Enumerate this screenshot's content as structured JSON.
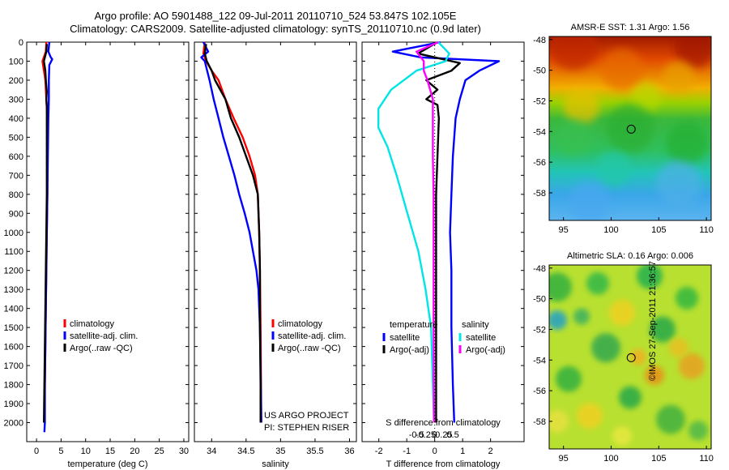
{
  "header": {
    "line1": "Argo profile: AO 5901488_122 09-Jul-2011 20110710_524 53.847S 102.105E",
    "line2": "Climatology: CARS2009. Satellite-adjusted climatology: synTS_20110710.nc (0.9d later)"
  },
  "copyright": "©IMOS 27-Sep-2011 21:36:57",
  "colors": {
    "climatology": "#ff0000",
    "satellite": "#0000ff",
    "argo": "#000000",
    "salinity_satellite": "#00e5e5",
    "salinity_argo": "#ff00ff"
  },
  "chart_data": [
    {
      "type": "line",
      "panel": "temperature",
      "xlabel": "temperature (deg C)",
      "ylabel": "",
      "xlim": [
        -2,
        31
      ],
      "ylim": [
        0,
        2100
      ],
      "y_reversed": true,
      "xticks": [
        0,
        5,
        10,
        15,
        20,
        25,
        30
      ],
      "yticks": [
        0,
        100,
        200,
        300,
        400,
        500,
        600,
        700,
        800,
        900,
        1000,
        1100,
        1200,
        1300,
        1400,
        1500,
        1600,
        1700,
        1800,
        1900,
        2000
      ],
      "legend": [
        "climatology",
        "satellite-adj. clim.",
        "Argo(..raw -QC)"
      ],
      "series": [
        {
          "name": "climatology",
          "color": "#ff0000",
          "points": [
            [
              2.0,
              0
            ],
            [
              1.9,
              50
            ],
            [
              1.2,
              100
            ],
            [
              1.5,
              150
            ],
            [
              1.8,
              200
            ],
            [
              2.0,
              300
            ],
            [
              2.2,
              400
            ],
            [
              2.2,
              600
            ],
            [
              2.2,
              800
            ],
            [
              2.1,
              1000
            ],
            [
              2.0,
              1200
            ],
            [
              1.9,
              1400
            ],
            [
              1.8,
              1600
            ],
            [
              1.7,
              1800
            ],
            [
              1.6,
              2000
            ]
          ]
        },
        {
          "name": "satellite-adj. clim.",
          "color": "#0000ff",
          "points": [
            [
              2.6,
              0
            ],
            [
              2.4,
              50
            ],
            [
              2.9,
              80
            ],
            [
              3.2,
              90
            ],
            [
              2.6,
              120
            ],
            [
              2.5,
              200
            ],
            [
              2.5,
              300
            ],
            [
              2.4,
              400
            ],
            [
              2.3,
              600
            ],
            [
              2.2,
              800
            ],
            [
              2.1,
              1000
            ],
            [
              2.0,
              1200
            ],
            [
              1.9,
              1400
            ],
            [
              1.8,
              1600
            ],
            [
              1.7,
              1800
            ],
            [
              1.7,
              2000
            ],
            [
              1.6,
              2050
            ]
          ]
        },
        {
          "name": "Argo(..raw -QC)",
          "color": "#000000",
          "points": [
            [
              2.1,
              10
            ],
            [
              2.0,
              50
            ],
            [
              1.5,
              100
            ],
            [
              1.8,
              150
            ],
            [
              1.9,
              200
            ],
            [
              2.1,
              260
            ],
            [
              2.0,
              300
            ],
            [
              2.1,
              340
            ],
            [
              2.1,
              400
            ],
            [
              2.1,
              600
            ],
            [
              2.1,
              800
            ],
            [
              2.0,
              1000
            ],
            [
              1.9,
              1200
            ],
            [
              1.8,
              1400
            ],
            [
              1.7,
              1600
            ],
            [
              1.6,
              1800
            ],
            [
              1.5,
              2000
            ]
          ]
        }
      ]
    },
    {
      "type": "line",
      "panel": "salinity",
      "xlabel": "salinity",
      "ylabel": "",
      "xlim": [
        33.75,
        36.1
      ],
      "ylim": [
        0,
        2100
      ],
      "y_reversed": true,
      "xticks": [
        34,
        34.5,
        35,
        35.5,
        36
      ],
      "xtick_labels": [
        "34",
        "34.5",
        "35",
        "35.5",
        "36"
      ],
      "legend": [
        "climatology",
        "satellite-adj. clim.",
        "Argo(..raw -QC)"
      ],
      "series": [
        {
          "name": "climatology",
          "color": "#ff0000",
          "points": [
            [
              33.9,
              0
            ],
            [
              33.88,
              60
            ],
            [
              33.92,
              100
            ],
            [
              34.0,
              150
            ],
            [
              34.1,
              200
            ],
            [
              34.2,
              300
            ],
            [
              34.32,
              400
            ],
            [
              34.45,
              500
            ],
            [
              34.55,
              600
            ],
            [
              34.63,
              700
            ],
            [
              34.67,
              800
            ],
            [
              34.69,
              1000
            ],
            [
              34.7,
              1200
            ],
            [
              34.71,
              1500
            ],
            [
              34.72,
              2000
            ]
          ]
        },
        {
          "name": "satellite-adj. clim.",
          "color": "#0000ff",
          "points": [
            [
              33.88,
              0
            ],
            [
              33.95,
              50
            ],
            [
              33.85,
              80
            ],
            [
              33.9,
              100
            ],
            [
              33.97,
              200
            ],
            [
              34.03,
              300
            ],
            [
              34.1,
              400
            ],
            [
              34.17,
              500
            ],
            [
              34.25,
              600
            ],
            [
              34.33,
              700
            ],
            [
              34.4,
              800
            ],
            [
              34.48,
              900
            ],
            [
              34.55,
              1000
            ],
            [
              34.6,
              1100
            ],
            [
              34.65,
              1200
            ],
            [
              34.68,
              1300
            ],
            [
              34.7,
              1500
            ],
            [
              34.71,
              1700
            ],
            [
              34.72,
              2000
            ]
          ]
        },
        {
          "name": "Argo(..raw -QC)",
          "color": "#000000",
          "points": [
            [
              33.92,
              10
            ],
            [
              33.9,
              60
            ],
            [
              33.93,
              100
            ],
            [
              34.0,
              150
            ],
            [
              34.05,
              200
            ],
            [
              34.2,
              300
            ],
            [
              34.28,
              400
            ],
            [
              34.4,
              500
            ],
            [
              34.5,
              600
            ],
            [
              34.6,
              700
            ],
            [
              34.67,
              800
            ],
            [
              34.69,
              1000
            ],
            [
              34.7,
              1200
            ],
            [
              34.7,
              1500
            ],
            [
              34.71,
              1800
            ],
            [
              34.71,
              2000
            ]
          ]
        }
      ]
    },
    {
      "type": "line",
      "panel": "difference",
      "xlabel": "T difference from climatology",
      "xlabel_top": "S difference from climatology",
      "xlim": [
        -2.6,
        3.2
      ],
      "ylim": [
        0,
        2100
      ],
      "y_reversed": true,
      "xticks_T": [
        -2,
        -1,
        0,
        1,
        2
      ],
      "xticks_S": [
        -0.5,
        -0.25,
        0,
        0.25,
        0.5
      ],
      "xtick_labels_S": [
        "-0.5",
        "-0.25",
        "0",
        "0.25",
        "0.5"
      ],
      "legend_headers": [
        "temperature",
        "salinity"
      ],
      "legend": [
        "satellite",
        "Argo(-adj)",
        "satellite",
        "Argo(-adj)"
      ],
      "series": [
        {
          "name": "temperature satellite",
          "color": "#0000ff",
          "points": [
            [
              0.2,
              0
            ],
            [
              -1.5,
              50
            ],
            [
              -0.5,
              80
            ],
            [
              2.3,
              100
            ],
            [
              1.6,
              150
            ],
            [
              1.1,
              200
            ],
            [
              0.9,
              300
            ],
            [
              0.75,
              400
            ],
            [
              0.65,
              600
            ],
            [
              0.6,
              800
            ],
            [
              0.55,
              1000
            ],
            [
              0.6,
              1200
            ],
            [
              0.6,
              1500
            ],
            [
              0.65,
              1800
            ],
            [
              0.7,
              2000
            ]
          ]
        },
        {
          "name": "temperature Argo(-adj)",
          "color": "#000000",
          "points": [
            [
              0.1,
              0
            ],
            [
              -0.6,
              60
            ],
            [
              0.9,
              110
            ],
            [
              0.6,
              150
            ],
            [
              -0.3,
              200
            ],
            [
              0.1,
              250
            ],
            [
              -0.3,
              300
            ],
            [
              0.1,
              330
            ],
            [
              0.15,
              400
            ],
            [
              0.1,
              600
            ],
            [
              0.05,
              800
            ],
            [
              0.05,
              1000
            ],
            [
              0.05,
              1500
            ],
            [
              0.05,
              2000
            ]
          ]
        },
        {
          "name": "salinity satellite",
          "color": "#00e5e5",
          "points": [
            [
              0.1,
              0
            ],
            [
              0.4,
              60
            ],
            [
              0.3,
              100
            ],
            [
              -0.5,
              150
            ],
            [
              -1.2,
              250
            ],
            [
              -1.55,
              350
            ],
            [
              -1.55,
              450
            ],
            [
              -1.3,
              550
            ],
            [
              -1.05,
              700
            ],
            [
              -0.75,
              900
            ],
            [
              -0.45,
              1100
            ],
            [
              -0.25,
              1300
            ],
            [
              -0.1,
              1500
            ],
            [
              -0.05,
              1800
            ],
            [
              -0.02,
              2000
            ]
          ]
        },
        {
          "name": "salinity Argo(-adj)",
          "color": "#ff00ff",
          "points": [
            [
              0.1,
              0
            ],
            [
              -0.5,
              50
            ],
            [
              -0.3,
              100
            ],
            [
              -0.3,
              150
            ],
            [
              -0.2,
              200
            ],
            [
              -0.05,
              300
            ],
            [
              -0.05,
              400
            ],
            [
              -0.05,
              600
            ],
            [
              -0.03,
              800
            ],
            [
              -0.03,
              1000
            ],
            [
              -0.03,
              1500
            ],
            [
              -0.02,
              2000
            ]
          ]
        }
      ]
    },
    {
      "type": "heatmap",
      "panel": "sst_map",
      "title": "AMSR-E SST: 1.31 Argo: 1.56",
      "xlim": [
        93.5,
        110.5
      ],
      "ylim": [
        -59.8,
        -47.8
      ],
      "xticks": [
        95,
        100,
        105,
        110
      ],
      "yticks": [
        -48,
        -50,
        -52,
        -54,
        -56,
        -58
      ],
      "float_position": {
        "lon": 102.105,
        "lat": -53.847
      }
    },
    {
      "type": "heatmap",
      "panel": "sla_map",
      "title": "Altimetric SLA: 0.16 Argo: 0.006",
      "xlim": [
        93.5,
        110.5
      ],
      "ylim": [
        -59.8,
        -47.8
      ],
      "xticks": [
        95,
        100,
        105,
        110
      ],
      "yticks": [
        -48,
        -50,
        -52,
        -54,
        -56,
        -58
      ],
      "float_position": {
        "lon": 102.105,
        "lat": -53.847
      }
    }
  ]
}
